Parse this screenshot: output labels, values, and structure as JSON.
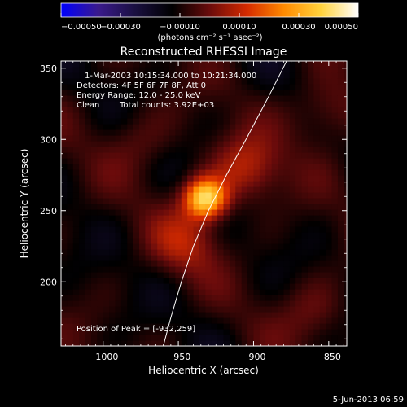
{
  "chart_data": {
    "type": "heatmap",
    "title": "Reconstructed RHESSI Image",
    "xlabel": "Heliocentric X (arcsec)",
    "ylabel": "Heliocentric Y (arcsec)",
    "xlim": [
      -1028,
      -838
    ],
    "ylim": [
      155,
      355
    ],
    "xticks": [
      -1000,
      -950,
      -900,
      -850
    ],
    "xtick_labels": [
      "−1000",
      "−950",
      "−900",
      "−850"
    ],
    "yticks": [
      200,
      250,
      300,
      350
    ],
    "ytick_labels": [
      "200",
      "250",
      "300",
      "350"
    ],
    "colorbar": {
      "min": -0.0005,
      "max": 0.0005,
      "ticks": [
        -0.0005,
        -0.0003,
        -0.0001,
        0.0001,
        0.0003,
        0.0005
      ],
      "tick_labels": [
        "−0.00050",
        "−0.00030",
        "−0.00010",
        "0.00010",
        "0.00030",
        "0.00050"
      ],
      "unit_label": "(photons cm⁻² s⁻¹ asec⁻²)",
      "colors": [
        "#0000ff",
        "#3a1a8c",
        "#1a1040",
        "#000000",
        "#6a0b0b",
        "#d42a00",
        "#ff8a00",
        "#ffd23c",
        "#ffffff"
      ]
    },
    "annotations": {
      "line1": "1-Mar-2003 10:15:34.000 to 10:21:34.000",
      "line2": "Detectors: 4F 5F 6F 7F 8F, Att 0",
      "line3": "Energy Range: 12.0 - 25.0 keV",
      "line4a": "Clean",
      "line4b": "Total counts: 3.92E+03",
      "peak": "Position of Peak = [-932,259]"
    },
    "peak": {
      "x": -932,
      "y": 259,
      "value": 0.0005
    },
    "secondary_sources": [
      {
        "x": -905,
        "y": 280,
        "value": 0.00018
      },
      {
        "x": -945,
        "y": 228,
        "value": 0.00015
      },
      {
        "x": -975,
        "y": 300,
        "value": 8e-05
      },
      {
        "x": -850,
        "y": 320,
        "value": 0.00012
      },
      {
        "x": -860,
        "y": 180,
        "value": 9e-05
      }
    ],
    "limb_curve": [
      {
        "x": -960,
        "y": 155
      },
      {
        "x": -955,
        "y": 175
      },
      {
        "x": -948,
        "y": 200
      },
      {
        "x": -940,
        "y": 225
      },
      {
        "x": -930,
        "y": 250
      },
      {
        "x": -918,
        "y": 275
      },
      {
        "x": -905,
        "y": 300
      },
      {
        "x": -890,
        "y": 330
      },
      {
        "x": -878,
        "y": 355
      }
    ]
  },
  "footer": {
    "date": "5-Jun-2013 06:59"
  }
}
